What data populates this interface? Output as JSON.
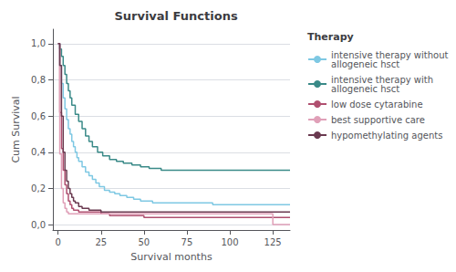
{
  "chart_data": {
    "type": "step",
    "title": "Survival Functions",
    "xlabel": "Survival months",
    "ylabel": "Cum Survival",
    "legend_title": "Therapy",
    "legend": "right",
    "grid": true,
    "xlim": [
      -3,
      135
    ],
    "ylim": [
      -0.03,
      1.08
    ],
    "xticks": [
      0,
      25,
      50,
      75,
      100,
      125
    ],
    "yticks": [
      {
        "value": 0.0,
        "label": "0,0"
      },
      {
        "value": 0.2,
        "label": "0,2"
      },
      {
        "value": 0.4,
        "label": "0,4"
      },
      {
        "value": 0.6,
        "label": "0,6"
      },
      {
        "value": 0.8,
        "label": "0,8"
      },
      {
        "value": 1.0,
        "label": "1,0"
      }
    ],
    "series": [
      {
        "name": "intensive therapy without\nallogeneic hsct",
        "color": "#7ec8e3",
        "x": [
          0,
          1,
          2,
          3,
          4,
          5,
          6,
          7,
          8,
          9,
          10,
          11,
          12,
          14,
          16,
          18,
          20,
          22,
          24,
          27,
          30,
          33,
          36,
          40,
          44,
          48,
          55,
          60,
          65,
          70,
          80,
          90,
          110,
          125,
          135
        ],
        "values": [
          1.0,
          0.88,
          0.78,
          0.7,
          0.64,
          0.58,
          0.53,
          0.5,
          0.46,
          0.43,
          0.4,
          0.37,
          0.35,
          0.32,
          0.29,
          0.27,
          0.25,
          0.23,
          0.21,
          0.19,
          0.18,
          0.17,
          0.16,
          0.15,
          0.14,
          0.13,
          0.12,
          0.12,
          0.12,
          0.12,
          0.12,
          0.11,
          0.11,
          0.11,
          0.11
        ]
      },
      {
        "name": "intensive therapy with\nallogeneic hsct",
        "color": "#3a8a88",
        "x": [
          0,
          1,
          2,
          3,
          4,
          5,
          6,
          7,
          8,
          10,
          12,
          14,
          16,
          18,
          20,
          23,
          26,
          30,
          34,
          38,
          43,
          48,
          53,
          60,
          70,
          80,
          90,
          100,
          110,
          120,
          125,
          135
        ],
        "values": [
          1.0,
          0.97,
          0.93,
          0.88,
          0.83,
          0.78,
          0.74,
          0.7,
          0.66,
          0.61,
          0.57,
          0.53,
          0.49,
          0.46,
          0.43,
          0.4,
          0.38,
          0.36,
          0.35,
          0.34,
          0.33,
          0.32,
          0.31,
          0.3,
          0.3,
          0.3,
          0.3,
          0.3,
          0.3,
          0.3,
          0.3,
          0.3
        ]
      },
      {
        "name": "low dose cytarabine",
        "color": "#b05070",
        "x": [
          0,
          1,
          2,
          3,
          4,
          5,
          6,
          7,
          8,
          9,
          10,
          12,
          14,
          16,
          18,
          20,
          25,
          30,
          35,
          40,
          45,
          50,
          55,
          60,
          70,
          80,
          90,
          110,
          125,
          135
        ],
        "values": [
          1.0,
          0.62,
          0.42,
          0.3,
          0.22,
          0.17,
          0.13,
          0.11,
          0.09,
          0.08,
          0.08,
          0.07,
          0.07,
          0.07,
          0.07,
          0.07,
          0.06,
          0.05,
          0.05,
          0.05,
          0.05,
          0.04,
          0.04,
          0.04,
          0.04,
          0.04,
          0.04,
          0.04,
          0.04,
          0.04
        ]
      },
      {
        "name": "best supportive care",
        "color": "#e0a0b8",
        "x": [
          0,
          1,
          2,
          3,
          4,
          5,
          6,
          7,
          8,
          10,
          12,
          15,
          18,
          20,
          25,
          30,
          35,
          40,
          45,
          50,
          55,
          60,
          65,
          70,
          80,
          90,
          100,
          115,
          120,
          125,
          135
        ],
        "values": [
          1.0,
          0.39,
          0.2,
          0.12,
          0.09,
          0.07,
          0.06,
          0.06,
          0.06,
          0.06,
          0.06,
          0.06,
          0.06,
          0.06,
          0.06,
          0.06,
          0.06,
          0.06,
          0.06,
          0.06,
          0.06,
          0.06,
          0.06,
          0.06,
          0.06,
          0.06,
          0.06,
          0.06,
          0.06,
          0.0,
          0.0
        ]
      },
      {
        "name": "hypomethylating agents",
        "color": "#6a3a50",
        "x": [
          0,
          1,
          2,
          3,
          4,
          5,
          6,
          7,
          8,
          9,
          10,
          12,
          14,
          16,
          18,
          20,
          22,
          25,
          28,
          30,
          35,
          40,
          45,
          50,
          60,
          70,
          80,
          90,
          100,
          110,
          125,
          135
        ],
        "values": [
          1.0,
          0.88,
          0.6,
          0.4,
          0.3,
          0.24,
          0.2,
          0.17,
          0.15,
          0.13,
          0.12,
          0.1,
          0.09,
          0.09,
          0.08,
          0.08,
          0.08,
          0.07,
          0.07,
          0.07,
          0.07,
          0.07,
          0.07,
          0.07,
          0.07,
          0.07,
          0.07,
          0.07,
          0.07,
          0.07,
          0.07,
          0.07
        ]
      }
    ]
  }
}
